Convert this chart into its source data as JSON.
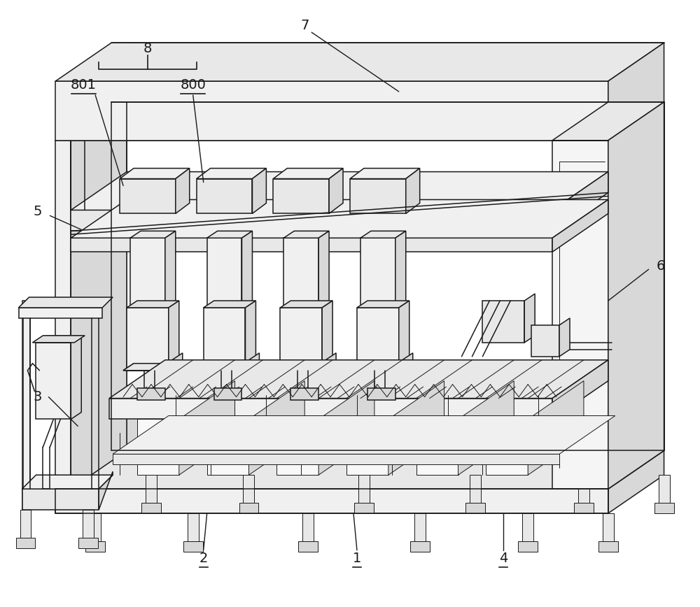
{
  "fig_width": 10.0,
  "fig_height": 8.68,
  "dpi": 100,
  "bg_color": "#ffffff",
  "line_color": "#1a1a1a",
  "lw_main": 1.5,
  "lw_thin": 0.7,
  "lw_medium": 1.1,
  "gray_light": "#f0f0f0",
  "gray_mid": "#d8d8d8",
  "gray_dark": "#b0b0b0",
  "gray_face": "#e8e8e8",
  "white": "#ffffff"
}
